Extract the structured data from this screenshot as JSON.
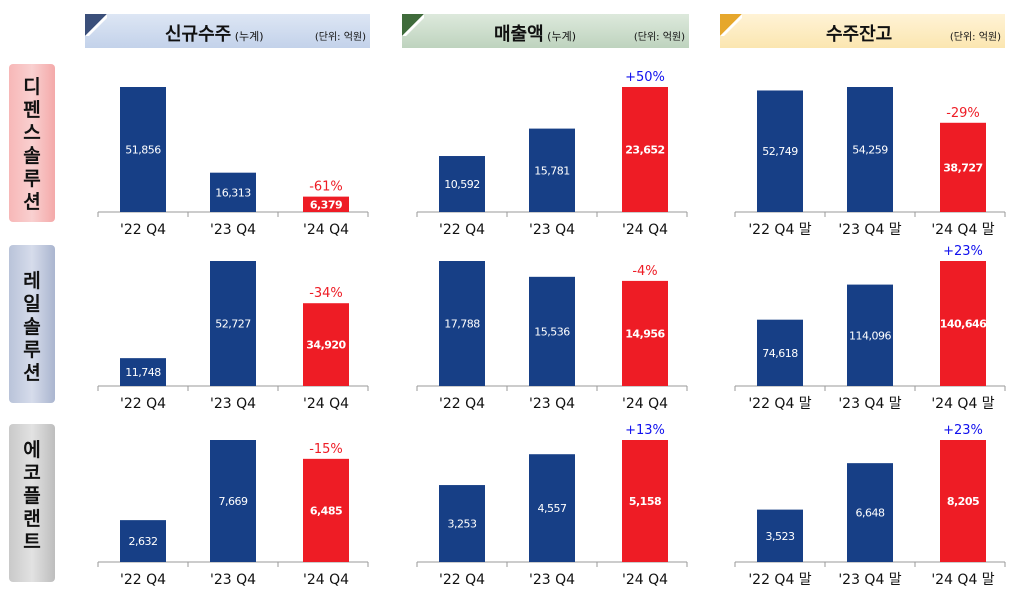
{
  "columns": [
    {
      "title": "신규수주",
      "sub": " (누계)",
      "unit": "(단위: 억원)"
    },
    {
      "title": "매출액",
      "sub": " (누계)",
      "unit": "(단위: 억원)"
    },
    {
      "title": "수주잔고",
      "sub": "",
      "unit": "(단위: 억원)"
    }
  ],
  "rows": [
    {
      "label": "디펜스솔루션"
    },
    {
      "label": "레일솔루션"
    },
    {
      "label": "에코플랜트"
    }
  ],
  "colors": {
    "navy": "#173f86",
    "red": "#ee1c25",
    "pct_red": "#ee1c25",
    "pct_blue": "#1010ee"
  },
  "chart_data": [
    {
      "type": "bar",
      "row": "디펜스솔루션",
      "column": "신규수주",
      "categories": [
        "'22 Q4",
        "'23 Q4",
        "'24 Q4"
      ],
      "values": [
        51856,
        16313,
        6379
      ],
      "value_labels": [
        "51,856",
        "16,313",
        "6,379"
      ],
      "change_label": "-61%",
      "change_color": "#ee1c25",
      "colors": [
        "#173f86",
        "#173f86",
        "#ee1c25"
      ]
    },
    {
      "type": "bar",
      "row": "디펜스솔루션",
      "column": "매출액",
      "categories": [
        "'22 Q4",
        "'23 Q4",
        "'24 Q4"
      ],
      "values": [
        10592,
        15781,
        23652
      ],
      "value_labels": [
        "10,592",
        "15,781",
        "23,652"
      ],
      "change_label": "+50%",
      "change_color": "#1010ee",
      "colors": [
        "#173f86",
        "#173f86",
        "#ee1c25"
      ]
    },
    {
      "type": "bar",
      "row": "디펜스솔루션",
      "column": "수주잔고",
      "categories": [
        "'22 Q4 말",
        "'23 Q4 말",
        "'24 Q4 말"
      ],
      "values": [
        52749,
        54259,
        38727
      ],
      "value_labels": [
        "52,749",
        "54,259",
        "38,727"
      ],
      "change_label": "-29%",
      "change_color": "#ee1c25",
      "colors": [
        "#173f86",
        "#173f86",
        "#ee1c25"
      ]
    },
    {
      "type": "bar",
      "row": "레일솔루션",
      "column": "신규수주",
      "categories": [
        "'22 Q4",
        "'23 Q4",
        "'24 Q4"
      ],
      "values": [
        11748,
        52727,
        34920
      ],
      "value_labels": [
        "11,748",
        "52,727",
        "34,920"
      ],
      "change_label": "-34%",
      "change_color": "#ee1c25",
      "colors": [
        "#173f86",
        "#173f86",
        "#ee1c25"
      ]
    },
    {
      "type": "bar",
      "row": "레일솔루션",
      "column": "매출액",
      "categories": [
        "'22 Q4",
        "'23 Q4",
        "'24 Q4"
      ],
      "values": [
        17788,
        15536,
        14956
      ],
      "value_labels": [
        "17,788",
        "15,536",
        "14,956"
      ],
      "change_label": "-4%",
      "change_color": "#ee1c25",
      "colors": [
        "#173f86",
        "#173f86",
        "#ee1c25"
      ]
    },
    {
      "type": "bar",
      "row": "레일솔루션",
      "column": "수주잔고",
      "categories": [
        "'22 Q4 말",
        "'23 Q4 말",
        "'24 Q4 말"
      ],
      "values": [
        74618,
        114096,
        140646
      ],
      "value_labels": [
        "74,618",
        "114,096",
        "140,646"
      ],
      "change_label": "+23%",
      "change_color": "#1010ee",
      "colors": [
        "#173f86",
        "#173f86",
        "#ee1c25"
      ]
    },
    {
      "type": "bar",
      "row": "에코플랜트",
      "column": "신규수주",
      "categories": [
        "'22 Q4",
        "'23 Q4",
        "'24 Q4"
      ],
      "values": [
        2632,
        7669,
        6485
      ],
      "value_labels": [
        "2,632",
        "7,669",
        "6,485"
      ],
      "change_label": "-15%",
      "change_color": "#ee1c25",
      "colors": [
        "#173f86",
        "#173f86",
        "#ee1c25"
      ]
    },
    {
      "type": "bar",
      "row": "에코플랜트",
      "column": "매출액",
      "categories": [
        "'22 Q4",
        "'23 Q4",
        "'24 Q4"
      ],
      "values": [
        3253,
        4557,
        5158
      ],
      "value_labels": [
        "3,253",
        "4,557",
        "5,158"
      ],
      "change_label": "+13%",
      "change_color": "#1010ee",
      "colors": [
        "#173f86",
        "#173f86",
        "#ee1c25"
      ]
    },
    {
      "type": "bar",
      "row": "에코플랜트",
      "column": "수주잔고",
      "categories": [
        "'22 Q4 말",
        "'23 Q4 말",
        "'24 Q4 말"
      ],
      "values": [
        3523,
        6648,
        8205
      ],
      "value_labels": [
        "3,523",
        "6,648",
        "8,205"
      ],
      "change_label": "+23%",
      "change_color": "#1010ee",
      "colors": [
        "#173f86",
        "#173f86",
        "#ee1c25"
      ]
    }
  ]
}
